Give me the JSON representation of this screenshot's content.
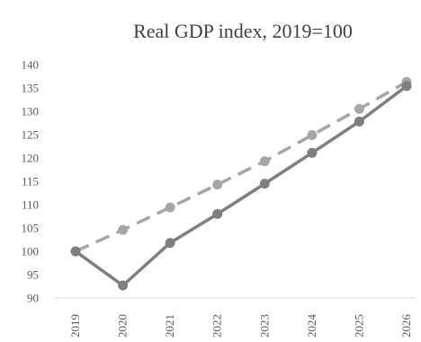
{
  "chart_data": {
    "type": "line",
    "title": "Real GDP index, 2019=100",
    "xlabel": "",
    "ylabel": "",
    "x": [
      "2019",
      "2020",
      "2021",
      "2022",
      "2023",
      "2024",
      "2025",
      "2026"
    ],
    "ylim": [
      90,
      140
    ],
    "yticks": [
      90,
      95,
      100,
      105,
      110,
      115,
      120,
      125,
      130,
      135,
      140
    ],
    "grid": false,
    "legend": "none",
    "series": [
      {
        "style": "solid",
        "markers": true,
        "color": "#7f7f7f",
        "values": [
          100,
          92.7,
          101.8,
          108,
          114.5,
          121.1,
          127.8,
          135.4
        ]
      },
      {
        "style": "dashed",
        "markers": true,
        "color": "#a6a6a6",
        "values": [
          100,
          104.6,
          109.4,
          114.3,
          119.3,
          124.9,
          130.5,
          136.3
        ]
      }
    ]
  }
}
